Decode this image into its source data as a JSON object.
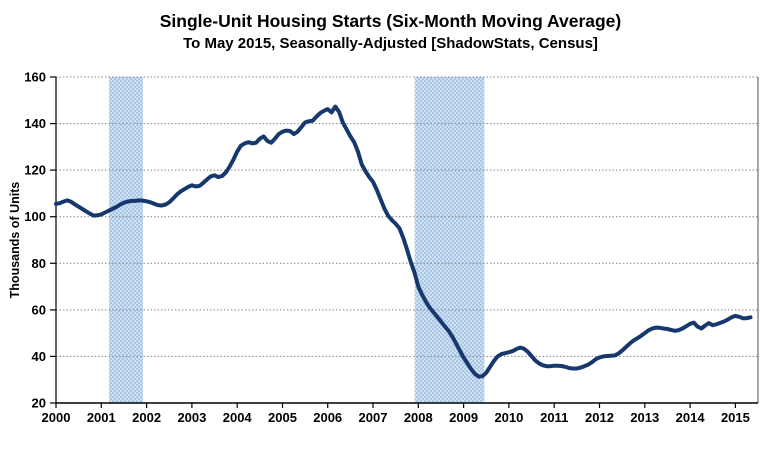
{
  "chart_data": {
    "type": "line",
    "title": "Single-Unit Housing Starts (Six-Month Moving Average)",
    "subtitle": "To May 2015, Seasonally-Adjusted [ShadowStats, Census]",
    "ylabel": "Thousands of Units",
    "xlabel": "",
    "legend": "none",
    "grid": "horizontal-dotted",
    "ylim": [
      20,
      160
    ],
    "xlim": [
      2000,
      2015.5
    ],
    "y_ticks": [
      20,
      40,
      60,
      80,
      100,
      120,
      140,
      160
    ],
    "x_ticks": [
      2000,
      2001,
      2002,
      2003,
      2004,
      2005,
      2006,
      2007,
      2008,
      2009,
      2010,
      2011,
      2012,
      2013,
      2014,
      2015
    ],
    "recession_bands": [
      {
        "from_x": 2001.17,
        "to_x": 2001.92
      },
      {
        "from_x": 2007.92,
        "to_x": 2009.46
      }
    ],
    "colors": {
      "line": "#17386D",
      "band": "#A9C7E7",
      "band_light": "#CEDFF2",
      "grid": "#858585",
      "axis": "#000000",
      "frame_right": "#6f6f6f"
    },
    "series": [
      {
        "name": "Single-unit housing starts, six-month moving average",
        "frequency": "monthly",
        "start": "2000-01",
        "end": "2015-05",
        "values": [
          105.5,
          105.8,
          106.5,
          107.0,
          106.4,
          105.3,
          104.3,
          103.3,
          102.3,
          101.3,
          100.5,
          100.6,
          101.0,
          101.8,
          102.6,
          103.4,
          104.2,
          105.2,
          106.0,
          106.5,
          106.8,
          106.8,
          107.0,
          106.9,
          106.6,
          106.2,
          105.6,
          105.0,
          104.8,
          105.2,
          106.2,
          107.8,
          109.5,
          110.8,
          111.8,
          112.8,
          113.5,
          113.0,
          113.2,
          114.5,
          116.0,
          117.3,
          117.8,
          117.0,
          117.5,
          119.0,
          121.5,
          124.5,
          128.0,
          130.5,
          131.5,
          132.0,
          131.5,
          131.8,
          133.5,
          134.5,
          132.5,
          131.8,
          133.5,
          135.5,
          136.5,
          137.0,
          136.8,
          135.5,
          136.5,
          138.5,
          140.5,
          141.0,
          141.2,
          143.0,
          144.5,
          145.5,
          146.2,
          144.8,
          147.3,
          145.0,
          140.5,
          137.5,
          134.5,
          132.0,
          128.0,
          122.5,
          119.5,
          117.0,
          115.0,
          111.5,
          107.5,
          103.5,
          100.5,
          98.5,
          97.0,
          95.0,
          91.0,
          86.0,
          80.5,
          76.0,
          70.0,
          66.5,
          63.5,
          61.0,
          59.0,
          57.0,
          55.0,
          53.0,
          51.0,
          48.5,
          45.5,
          42.5,
          39.5,
          37.0,
          34.5,
          32.5,
          31.3,
          31.5,
          33.0,
          35.5,
          38.0,
          40.0,
          41.0,
          41.4,
          41.8,
          42.3,
          43.2,
          43.8,
          43.3,
          42.0,
          40.2,
          38.3,
          37.0,
          36.2,
          35.8,
          35.8,
          36.0,
          36.0,
          35.9,
          35.5,
          35.0,
          34.8,
          34.8,
          35.2,
          35.8,
          36.5,
          37.5,
          38.8,
          39.6,
          40.0,
          40.2,
          40.3,
          40.4,
          41.2,
          42.5,
          44.0,
          45.5,
          46.8,
          47.8,
          48.8,
          50.0,
          51.2,
          52.0,
          52.4,
          52.3,
          52.0,
          51.8,
          51.4,
          51.0,
          51.3,
          52.0,
          53.0,
          54.0,
          54.5,
          52.8,
          52.0,
          53.3,
          54.3,
          53.4,
          53.8,
          54.4,
          55.0,
          55.8,
          56.8,
          57.4,
          57.0,
          56.4,
          56.4,
          56.8
        ]
      }
    ]
  }
}
